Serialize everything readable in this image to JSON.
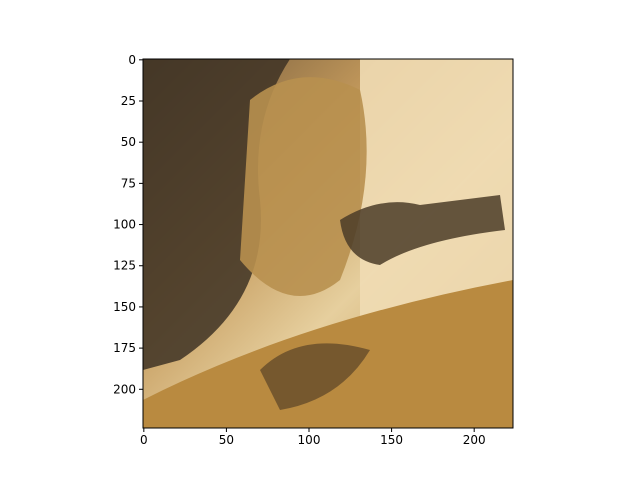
{
  "chart_data": {
    "type": "image",
    "xlim": [
      -0.5,
      223.5
    ],
    "ylim": [
      223.5,
      -0.5
    ],
    "xticks": [
      0,
      50,
      100,
      150,
      200
    ],
    "yticks": [
      0,
      25,
      50,
      75,
      100,
      125,
      150,
      175,
      200
    ]
  }
}
